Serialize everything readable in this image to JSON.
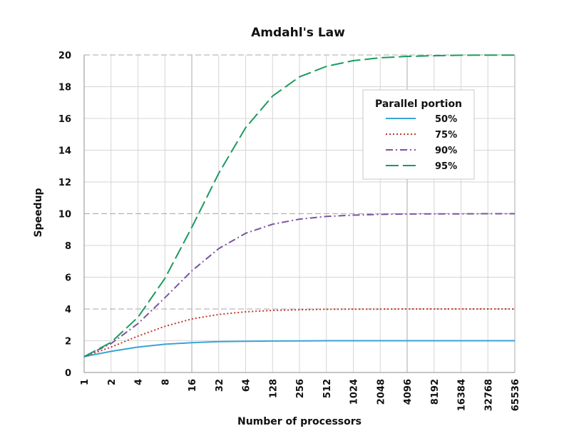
{
  "chart_data": {
    "type": "line",
    "title": "Amdahl's Law",
    "xlabel": "Number of processors",
    "ylabel": "Speedup",
    "x_scale": "log2",
    "categories": [
      "1",
      "2",
      "4",
      "8",
      "16",
      "32",
      "64",
      "128",
      "256",
      "512",
      "1024",
      "2048",
      "4096",
      "8192",
      "16384",
      "32768",
      "65536"
    ],
    "yticks": [
      "0",
      "2",
      "4",
      "6",
      "8",
      "10",
      "12",
      "14",
      "16",
      "18",
      "20"
    ],
    "ylim": [
      0,
      20
    ],
    "grid": true,
    "legend": {
      "title": "Parallel portion",
      "position": "upper-right"
    },
    "series": [
      {
        "name": "50%",
        "color": "#3aa3d6",
        "dash": "solid",
        "values": [
          1.0,
          1.33,
          1.6,
          1.78,
          1.88,
          1.94,
          1.97,
          1.98,
          1.99,
          2.0,
          2.0,
          2.0,
          2.0,
          2.0,
          2.0,
          2.0,
          2.0
        ]
      },
      {
        "name": "75%",
        "color": "#c0392b",
        "dash": "dotted",
        "values": [
          1.0,
          1.6,
          2.29,
          2.91,
          3.37,
          3.66,
          3.82,
          3.91,
          3.95,
          3.98,
          3.99,
          3.99,
          4.0,
          4.0,
          4.0,
          4.0,
          4.0
        ]
      },
      {
        "name": "90%",
        "color": "#7b559e",
        "dash": "dashdot",
        "values": [
          1.0,
          1.82,
          3.08,
          4.71,
          6.4,
          7.8,
          8.77,
          9.34,
          9.66,
          9.83,
          9.91,
          9.96,
          9.98,
          9.99,
          9.99,
          10.0,
          10.0
        ]
      },
      {
        "name": "95%",
        "color": "#1a9b5e",
        "dash": "longdash",
        "values": [
          1.0,
          1.9,
          3.48,
          5.93,
          9.14,
          12.55,
          15.42,
          17.41,
          18.62,
          19.28,
          19.64,
          19.82,
          19.91,
          19.95,
          19.98,
          19.99,
          19.99
        ]
      }
    ]
  }
}
